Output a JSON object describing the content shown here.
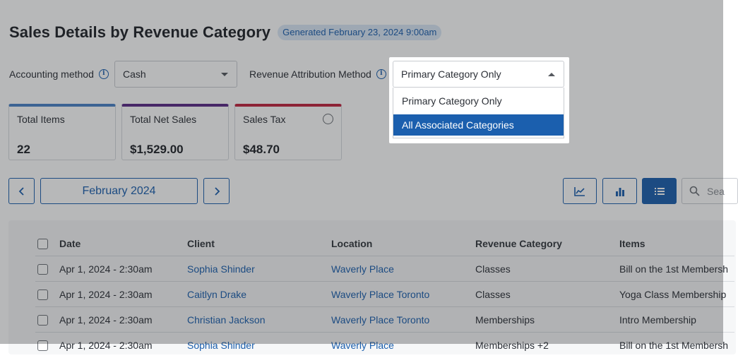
{
  "header": {
    "title": "Sales Details by Revenue Category",
    "generated_badge": "Generated February 23, 2024 9:00am"
  },
  "filters": {
    "accounting_method": {
      "label": "Accounting method",
      "value": "Cash"
    },
    "revenue_attribution": {
      "label": "Revenue Attribution Method",
      "value": "Primary Category Only",
      "options": [
        "Primary Category Only",
        "All Associated Categories"
      ],
      "highlighted_option": "All Associated Categories"
    }
  },
  "stats": [
    {
      "label": "Total Items",
      "value": "22",
      "accent": "#4a82c8"
    },
    {
      "label": "Total Net Sales",
      "value": "$1,529.00",
      "accent": "#5a2a86"
    },
    {
      "label": "Sales Tax",
      "value": "$48.70",
      "accent": "#c2243f"
    }
  ],
  "pager": {
    "prev_icon": "chevron-left-icon",
    "period": "February 2024",
    "next_icon": "chevron-right-icon"
  },
  "toolbar": {
    "views": [
      "line-chart-icon",
      "bar-chart-icon",
      "list-icon"
    ],
    "active_view": "list-icon",
    "search_placeholder": "Sea"
  },
  "table": {
    "columns": [
      "Date",
      "Client",
      "Location",
      "Revenue Category",
      "Items"
    ],
    "rows": [
      [
        "Apr 1, 2024 - 2:30am",
        "Sophia Shinder",
        "Waverly Place",
        "Classes",
        "Bill on the 1st Membersh"
      ],
      [
        "Apr 1, 2024 - 2:30am",
        "Caitlyn Drake",
        "Waverly Place Toronto",
        "Classes",
        "Yoga Class Membership"
      ],
      [
        "Apr 1, 2024 - 2:30am",
        "Christian Jackson",
        "Waverly Place Toronto",
        "Memberships",
        "Intro Membership"
      ],
      [
        "Apr 1, 2024 - 2:30am",
        "Sophia Shinder",
        "Waverly Place",
        "Memberships +2",
        "Bill on the 1st Membersh"
      ]
    ]
  }
}
